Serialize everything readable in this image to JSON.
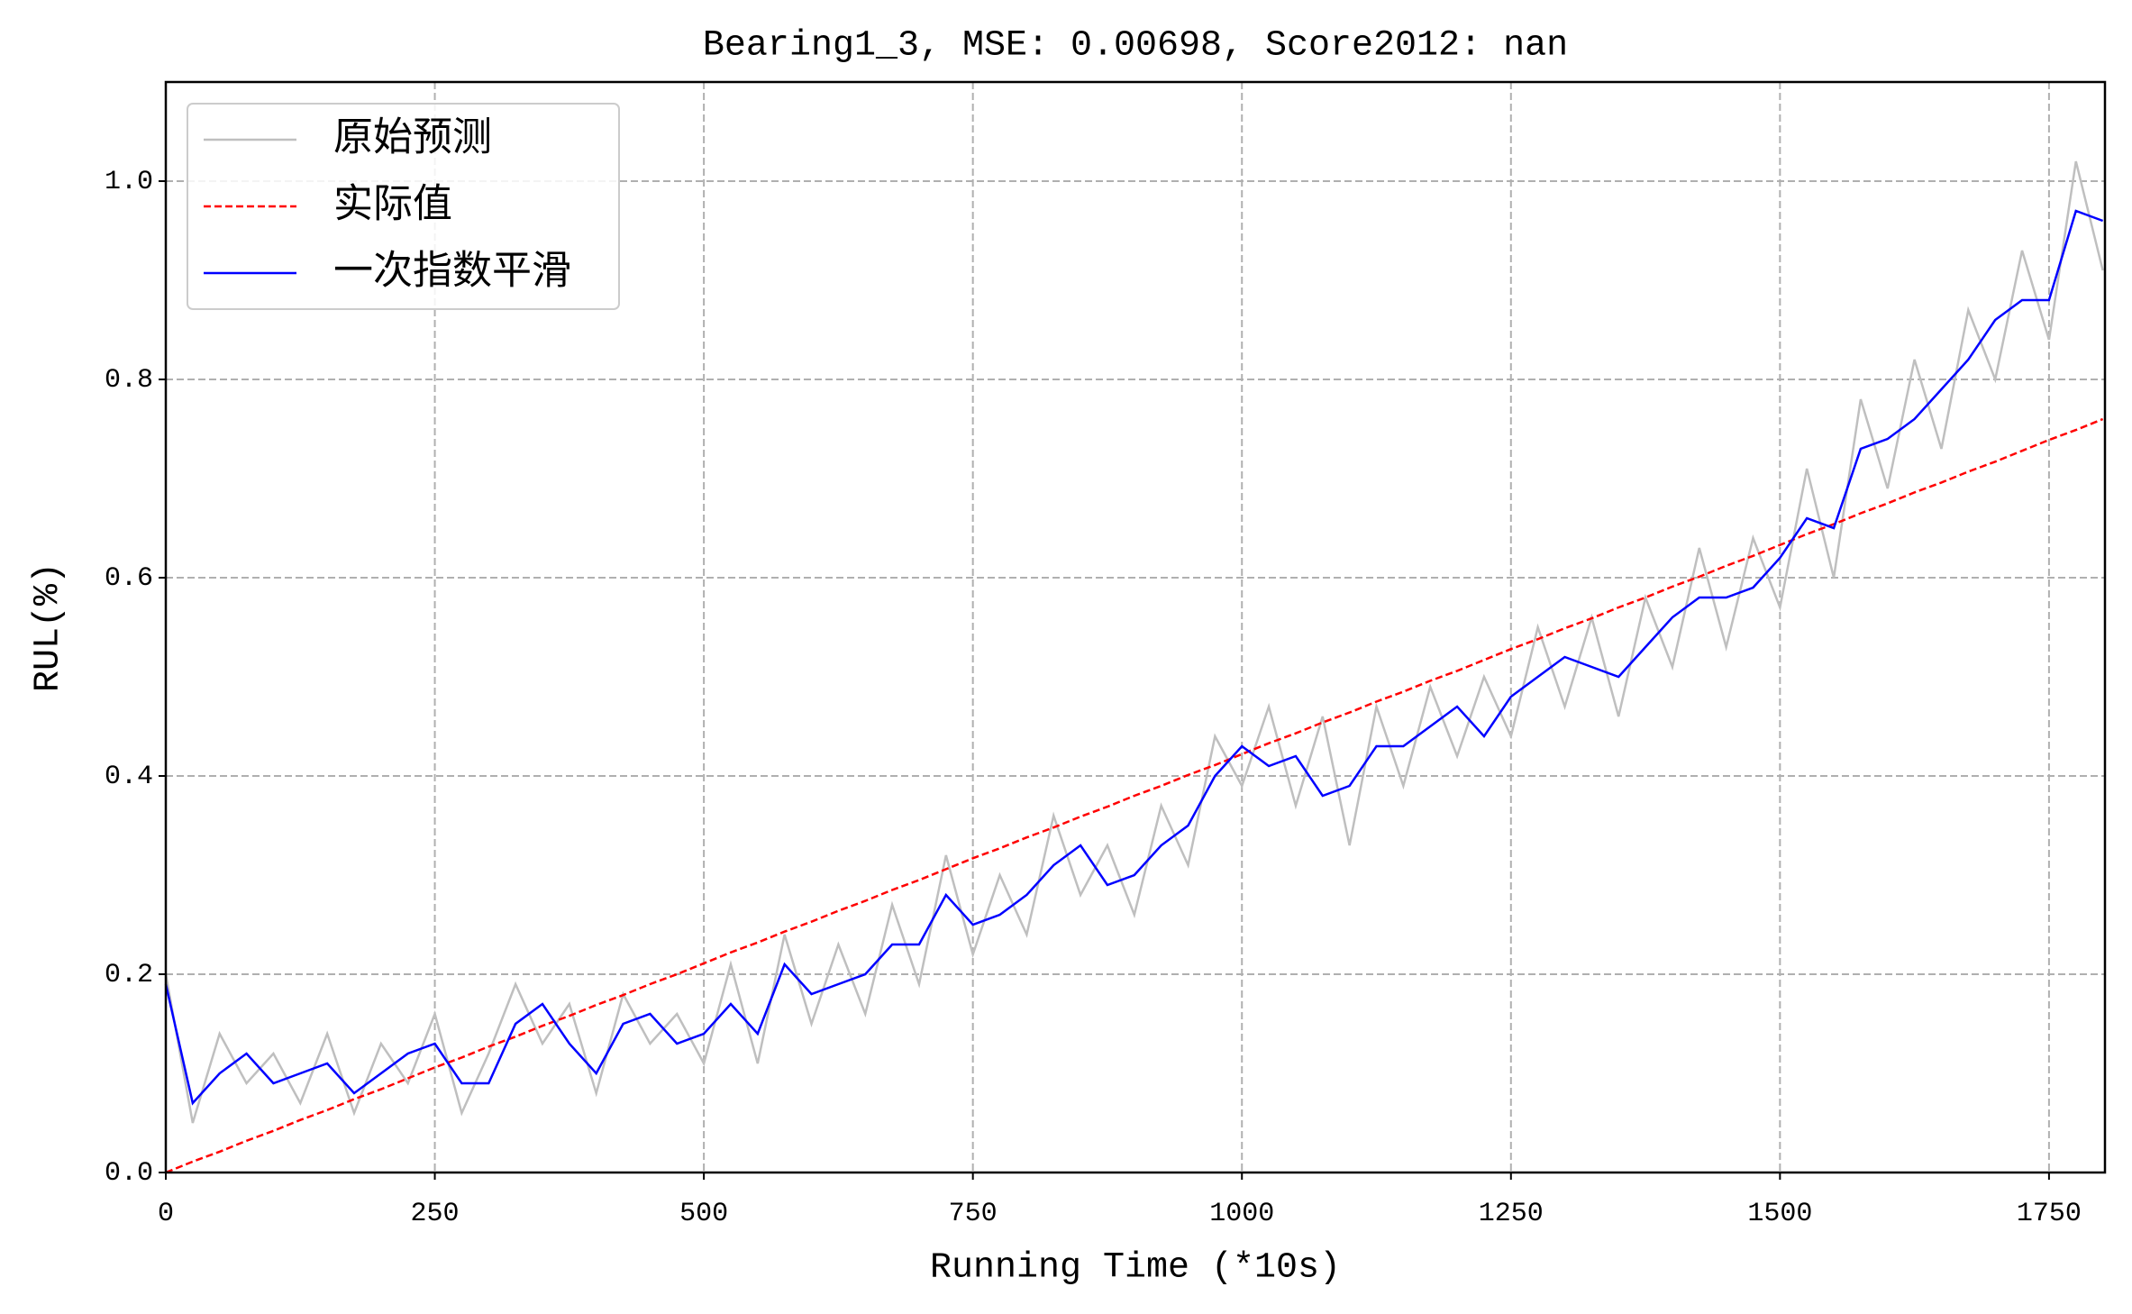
{
  "chart_data": {
    "type": "line",
    "title": "Bearing1_3, MSE: 0.00698, Score2012: nan",
    "x_label": "Running Time (*10s)",
    "y_label": "RUL(%)",
    "x": [
      0,
      25,
      50,
      75,
      100,
      125,
      150,
      175,
      200,
      225,
      250,
      275,
      300,
      325,
      350,
      375,
      400,
      425,
      450,
      475,
      500,
      525,
      550,
      575,
      600,
      625,
      650,
      675,
      700,
      725,
      750,
      775,
      800,
      825,
      850,
      875,
      900,
      925,
      950,
      975,
      1000,
      1025,
      1050,
      1075,
      1100,
      1125,
      1150,
      1175,
      1200,
      1225,
      1250,
      1275,
      1300,
      1325,
      1350,
      1375,
      1400,
      1425,
      1450,
      1475,
      1500,
      1525,
      1550,
      1575,
      1600,
      1625,
      1650,
      1675,
      1700,
      1725,
      1750,
      1775,
      1800
    ],
    "series": [
      {
        "name": "原始预测",
        "color": "#bfbfbf",
        "linestyle": "solid",
        "values": [
          0.2,
          0.05,
          0.14,
          0.09,
          0.12,
          0.07,
          0.14,
          0.06,
          0.13,
          0.09,
          0.16,
          0.06,
          0.12,
          0.19,
          0.13,
          0.17,
          0.08,
          0.18,
          0.13,
          0.16,
          0.11,
          0.21,
          0.11,
          0.24,
          0.15,
          0.23,
          0.16,
          0.27,
          0.19,
          0.32,
          0.22,
          0.3,
          0.24,
          0.36,
          0.28,
          0.33,
          0.26,
          0.37,
          0.31,
          0.44,
          0.39,
          0.47,
          0.37,
          0.46,
          0.33,
          0.47,
          0.39,
          0.49,
          0.42,
          0.5,
          0.44,
          0.55,
          0.47,
          0.56,
          0.46,
          0.58,
          0.51,
          0.63,
          0.53,
          0.64,
          0.57,
          0.71,
          0.6,
          0.78,
          0.69,
          0.82,
          0.73,
          0.87,
          0.8,
          0.93,
          0.84,
          1.02,
          0.91
        ]
      },
      {
        "name": "实际值",
        "color": "#ff0000",
        "linestyle": "dashed",
        "values": [
          0,
          0.011,
          0.021,
          0.032,
          0.042,
          0.053,
          0.063,
          0.074,
          0.084,
          0.095,
          0.106,
          0.116,
          0.127,
          0.137,
          0.148,
          0.158,
          0.169,
          0.179,
          0.19,
          0.2,
          0.211,
          0.222,
          0.232,
          0.243,
          0.253,
          0.264,
          0.274,
          0.285,
          0.295,
          0.306,
          0.317,
          0.327,
          0.338,
          0.348,
          0.359,
          0.369,
          0.38,
          0.39,
          0.401,
          0.411,
          0.422,
          0.433,
          0.443,
          0.454,
          0.464,
          0.475,
          0.485,
          0.496,
          0.506,
          0.517,
          0.528,
          0.538,
          0.549,
          0.559,
          0.57,
          0.58,
          0.591,
          0.601,
          0.612,
          0.622,
          0.633,
          0.644,
          0.654,
          0.665,
          0.675,
          0.686,
          0.696,
          0.707,
          0.717,
          0.728,
          0.739,
          0.749,
          0.76
        ]
      },
      {
        "name": "一次指数平滑",
        "color": "#0000ff",
        "linestyle": "solid",
        "values": [
          0.19,
          0.07,
          0.1,
          0.12,
          0.09,
          0.1,
          0.11,
          0.08,
          0.1,
          0.12,
          0.13,
          0.09,
          0.09,
          0.15,
          0.17,
          0.13,
          0.1,
          0.15,
          0.16,
          0.13,
          0.14,
          0.17,
          0.14,
          0.21,
          0.18,
          0.19,
          0.2,
          0.23,
          0.23,
          0.28,
          0.25,
          0.26,
          0.28,
          0.31,
          0.33,
          0.29,
          0.3,
          0.33,
          0.35,
          0.4,
          0.43,
          0.41,
          0.42,
          0.38,
          0.39,
          0.43,
          0.43,
          0.45,
          0.47,
          0.44,
          0.48,
          0.5,
          0.52,
          0.51,
          0.5,
          0.53,
          0.56,
          0.58,
          0.58,
          0.59,
          0.62,
          0.66,
          0.65,
          0.73,
          0.74,
          0.76,
          0.79,
          0.82,
          0.86,
          0.88,
          0.88,
          0.97,
          0.96
        ]
      }
    ],
    "xlim": [
      0,
      1802
    ],
    "ylim": [
      0,
      1.1
    ],
    "xticks": [
      0,
      250,
      500,
      750,
      1000,
      1250,
      1500,
      1750
    ],
    "yticks": [
      {
        "value": 0,
        "label": "0.0"
      },
      {
        "value": 0.2,
        "label": "0.2"
      },
      {
        "value": 0.4,
        "label": "0.4"
      },
      {
        "value": 0.6,
        "label": "0.6"
      },
      {
        "value": 0.8,
        "label": "0.8"
      },
      {
        "value": 1.0,
        "label": "1.0"
      }
    ],
    "grid": true,
    "legend": "upper left"
  }
}
